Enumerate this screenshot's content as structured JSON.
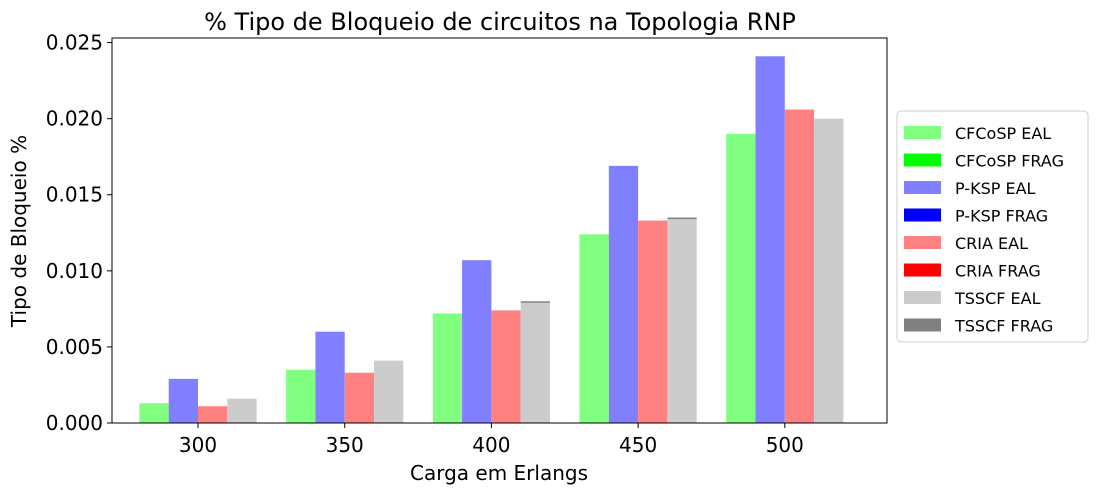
{
  "chart_data": {
    "type": "bar",
    "title": "% Tipo de Bloqueio de circuitos na Topologia RNP",
    "xlabel": "Carga em Erlangs",
    "ylabel": "Tipo de Bloqueio %",
    "categories": [
      "300",
      "350",
      "400",
      "450",
      "500"
    ],
    "ylim": [
      0,
      0.0253
    ],
    "yticks": [
      "0.000",
      "0.005",
      "0.010",
      "0.015",
      "0.020",
      "0.025"
    ],
    "ytick_values": [
      0,
      0.005,
      0.01,
      0.015,
      0.02,
      0.025
    ],
    "grid": false,
    "legend_position": "outside-right",
    "stacked_groups": [
      [
        "CFCoSP EAL",
        "CFCoSP FRAG"
      ],
      [
        "P-KSP EAL",
        "P-KSP FRAG"
      ],
      [
        "CRIA EAL",
        "CRIA FRAG"
      ],
      [
        "TSSCF EAL",
        "TSSCF FRAG"
      ]
    ],
    "series": [
      {
        "name": "CFCoSP EAL",
        "color": "#80ff80",
        "values": [
          0.0013,
          0.0035,
          0.0072,
          0.0124,
          0.019
        ]
      },
      {
        "name": "CFCoSP FRAG",
        "color": "#00ff00",
        "values": [
          0,
          0,
          0,
          0,
          0
        ]
      },
      {
        "name": "P-KSP EAL",
        "color": "#8080ff",
        "values": [
          0.0029,
          0.006,
          0.0107,
          0.0169,
          0.0241
        ]
      },
      {
        "name": "P-KSP FRAG",
        "color": "#0000ff",
        "values": [
          0,
          0,
          0,
          0,
          0
        ]
      },
      {
        "name": "CRIA EAL",
        "color": "#ff8080",
        "values": [
          0.0011,
          0.0033,
          0.0074,
          0.0133,
          0.0206
        ]
      },
      {
        "name": "CRIA FRAG",
        "color": "#ff0000",
        "values": [
          0,
          0,
          0,
          0,
          0
        ]
      },
      {
        "name": "TSSCF EAL",
        "color": "#cccccc",
        "values": [
          0.0016,
          0.0041,
          0.0079,
          0.0134,
          0.02
        ]
      },
      {
        "name": "TSSCF FRAG",
        "color": "#808080",
        "values": [
          0,
          0,
          0.0001,
          0.0001,
          0
        ]
      }
    ]
  }
}
